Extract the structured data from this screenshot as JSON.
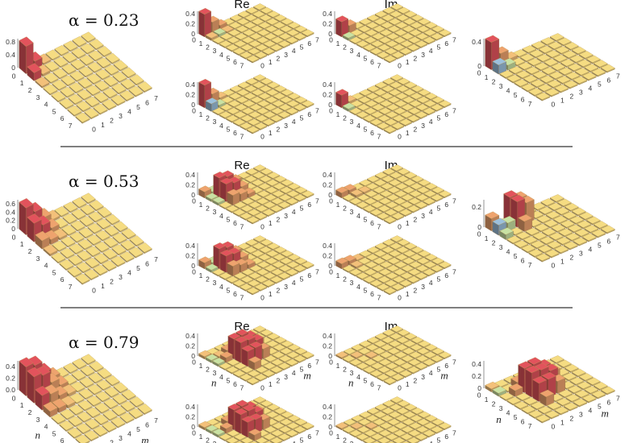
{
  "colors": {
    "tile": "#f5dc82",
    "red": "#e2535c",
    "orange": "#eea36e",
    "light_orange": "#f3c07a",
    "green": "#c9e2a3",
    "blue": "#9cc0dc",
    "divider": "#555555"
  },
  "column_titles": {
    "re": "Re",
    "im": "Im"
  },
  "axis_names": {
    "n": "n",
    "m": "m"
  },
  "index_labels": [
    "0",
    "1",
    "2",
    "3",
    "4",
    "5",
    "6",
    "7"
  ],
  "chart_data": [
    {
      "type": "bar3d",
      "alpha_label": "α = 0.23",
      "show_nm": false,
      "panels": {
        "populations": {
          "zmax": 0.9,
          "zticks": [
            "0",
            "0.4",
            "0.8"
          ],
          "ztick_values": [
            0,
            0.4,
            0.8
          ],
          "bars": [
            [
              0,
              0,
              0.85
            ],
            [
              0,
              1,
              0.25
            ],
            [
              1,
              0,
              0.25
            ],
            [
              1,
              1,
              0.07
            ],
            [
              0,
              2,
              0.05
            ],
            [
              2,
              0,
              0.05
            ]
          ]
        },
        "re_top": {
          "zmax": 0.45,
          "zticks": [
            "0",
            "0.2",
            "0.4"
          ],
          "ztick_values": [
            0,
            0.2,
            0.4
          ],
          "bars": [
            [
              0,
              0,
              0.45
            ],
            [
              0,
              1,
              0.22
            ],
            [
              1,
              0,
              0.05
            ],
            [
              1,
              1,
              -0.05
            ],
            [
              0,
              2,
              0.08
            ],
            [
              1,
              2,
              0.03
            ]
          ]
        },
        "re_bottom": {
          "zmax": 0.45,
          "zticks": [
            "0",
            "0.2",
            "0.4"
          ],
          "ztick_values": [
            0,
            0.2,
            0.4
          ],
          "bars": [
            [
              0,
              0,
              0.45
            ],
            [
              0,
              1,
              0.2
            ],
            [
              1,
              0,
              -0.15
            ],
            [
              1,
              1,
              -0.05
            ],
            [
              0,
              2,
              0.05
            ]
          ]
        },
        "im_top": {
          "zmax": 0.45,
          "zticks": [
            "0",
            "0.2",
            "0.4"
          ],
          "ztick_values": [
            0,
            0.2,
            0.4
          ],
          "bars": [
            [
              0,
              0,
              0.3
            ],
            [
              0,
              1,
              0.15
            ],
            [
              1,
              0,
              -0.05
            ]
          ]
        },
        "im_bottom": {
          "zmax": 0.45,
          "zticks": [
            "0",
            "0.2",
            "0.4"
          ],
          "ztick_values": [
            0,
            0.2,
            0.4
          ],
          "bars": [
            [
              0,
              0,
              0.25
            ],
            [
              0,
              1,
              0.05
            ],
            [
              1,
              0,
              -0.05
            ]
          ]
        },
        "reconstructed": {
          "zmax": 0.45,
          "zticks": [
            "0",
            "0.4"
          ],
          "ztick_values": [
            0,
            0.4
          ],
          "bars": [
            [
              0,
              0,
              0.45
            ],
            [
              0,
              1,
              0.2
            ],
            [
              1,
              0,
              -0.15
            ],
            [
              1,
              1,
              -0.08
            ],
            [
              0,
              2,
              0.05
            ]
          ]
        }
      }
    },
    {
      "type": "bar3d",
      "alpha_label": "α = 0.53",
      "show_nm": false,
      "panels": {
        "populations": {
          "zmax": 0.7,
          "zticks": [
            "0",
            "0.2",
            "0.4",
            "0.6"
          ],
          "ztick_values": [
            0,
            0.2,
            0.4,
            0.6
          ],
          "bars": [
            [
              0,
              0,
              0.65
            ],
            [
              0,
              1,
              0.45
            ],
            [
              1,
              0,
              0.45
            ],
            [
              1,
              1,
              0.3
            ],
            [
              0,
              2,
              0.2
            ],
            [
              2,
              0,
              0.2
            ],
            [
              1,
              2,
              0.12
            ],
            [
              2,
              1,
              0.12
            ],
            [
              2,
              2,
              0.05
            ],
            [
              0,
              3,
              0.05
            ],
            [
              3,
              0,
              0.05
            ]
          ]
        },
        "re_top": {
          "zmax": 0.45,
          "zticks": [
            "0",
            "0.2",
            "0.4"
          ],
          "ztick_values": [
            0,
            0.2,
            0.4
          ],
          "bars": [
            [
              0,
              0,
              0.12
            ],
            [
              1,
              1,
              0.4
            ],
            [
              1,
              2,
              0.35
            ],
            [
              2,
              1,
              0.35
            ],
            [
              2,
              2,
              0.3
            ],
            [
              1,
              3,
              0.2
            ],
            [
              3,
              1,
              0.2
            ],
            [
              2,
              3,
              0.15
            ],
            [
              3,
              2,
              0.15
            ],
            [
              3,
              3,
              0.08
            ],
            [
              0,
              1,
              -0.05
            ],
            [
              0,
              2,
              -0.05
            ],
            [
              1,
              0,
              -0.05
            ],
            [
              2,
              0,
              -0.05
            ]
          ]
        },
        "re_bottom": {
          "zmax": 0.45,
          "zticks": [
            "0",
            "0.2",
            "0.4"
          ],
          "ztick_values": [
            0,
            0.2,
            0.4
          ],
          "bars": [
            [
              0,
              0,
              0.12
            ],
            [
              1,
              1,
              0.4
            ],
            [
              1,
              2,
              0.35
            ],
            [
              2,
              1,
              0.33
            ],
            [
              2,
              2,
              0.3
            ],
            [
              1,
              3,
              0.2
            ],
            [
              3,
              1,
              0.2
            ],
            [
              2,
              3,
              0.15
            ],
            [
              3,
              2,
              0.15
            ],
            [
              3,
              3,
              0.08
            ],
            [
              0,
              1,
              -0.05
            ],
            [
              1,
              0,
              -0.05
            ]
          ]
        },
        "im_top": {
          "zmax": 0.45,
          "zticks": [
            "0",
            "0.2",
            "0.4"
          ],
          "ztick_values": [
            0,
            0.2,
            0.4
          ],
          "bars": [
            [
              0,
              0,
              0.1
            ],
            [
              0,
              1,
              0.08
            ],
            [
              1,
              1,
              0.05
            ],
            [
              1,
              2,
              0.04
            ]
          ]
        },
        "im_bottom": {
          "zmax": 0.45,
          "zticks": [
            "0",
            "0.2",
            "0.4"
          ],
          "ztick_values": [
            0,
            0.2,
            0.4
          ],
          "bars": [
            [
              0,
              0,
              0.1
            ],
            [
              0,
              1,
              0.08
            ],
            [
              1,
              1,
              0.04
            ],
            [
              0,
              2,
              0.03
            ]
          ]
        },
        "reconstructed": {
          "zmax": 0.27,
          "zticks": [
            "0",
            "0.2"
          ],
          "ztick_values": [
            0,
            0.2
          ],
          "bars": [
            [
              0,
              0,
              0.12
            ],
            [
              0,
              2,
              0.25
            ],
            [
              1,
              2,
              0.25
            ],
            [
              0,
              3,
              0.2
            ],
            [
              1,
              3,
              0.2
            ],
            [
              2,
              2,
              0.1
            ],
            [
              1,
              0,
              -0.1
            ],
            [
              1,
              1,
              -0.08
            ],
            [
              2,
              0,
              -0.05
            ]
          ]
        }
      }
    },
    {
      "type": "bar3d",
      "alpha_label": "α = 0.79",
      "show_nm": true,
      "panels": {
        "populations": {
          "zmax": 0.5,
          "zticks": [
            "0.0",
            "0.2",
            "0.4"
          ],
          "ztick_values": [
            0,
            0.2,
            0.4
          ],
          "bars": [
            [
              0,
              0,
              0.5
            ],
            [
              0,
              1,
              0.45
            ],
            [
              1,
              0,
              0.45
            ],
            [
              1,
              1,
              0.4
            ],
            [
              0,
              2,
              0.25
            ],
            [
              2,
              0,
              0.25
            ],
            [
              1,
              2,
              0.2
            ],
            [
              2,
              1,
              0.2
            ],
            [
              2,
              2,
              0.1
            ],
            [
              0,
              3,
              0.1
            ],
            [
              3,
              0,
              0.1
            ],
            [
              1,
              3,
              0.08
            ],
            [
              3,
              1,
              0.08
            ],
            [
              2,
              3,
              0.05
            ],
            [
              3,
              2,
              0.05
            ]
          ]
        },
        "re_top": {
          "zmax": 0.45,
          "zticks": [
            "0",
            "0.2",
            "0.4"
          ],
          "ztick_values": [
            0,
            0.2,
            0.4
          ],
          "bars": [
            [
              0,
              0,
              0.05
            ],
            [
              2,
              2,
              0.4
            ],
            [
              2,
              3,
              0.4
            ],
            [
              3,
              2,
              0.4
            ],
            [
              3,
              3,
              0.38
            ],
            [
              2,
              4,
              0.3
            ],
            [
              4,
              2,
              0.3
            ],
            [
              3,
              4,
              0.3
            ],
            [
              4,
              3,
              0.3
            ],
            [
              4,
              4,
              0.2
            ],
            [
              1,
              2,
              0.1
            ],
            [
              2,
              1,
              0.1
            ],
            [
              1,
              1,
              0.05
            ],
            [
              2,
              5,
              0.15
            ],
            [
              5,
              2,
              0.15
            ],
            [
              1,
              0,
              -0.05
            ],
            [
              2,
              0,
              -0.05
            ]
          ]
        },
        "re_bottom": {
          "zmax": 0.45,
          "zticks": [
            "0",
            "0.2",
            "0.4"
          ],
          "ztick_values": [
            0,
            0.2,
            0.4
          ],
          "bars": [
            [
              0,
              0,
              0.05
            ],
            [
              2,
              2,
              0.4
            ],
            [
              2,
              3,
              0.4
            ],
            [
              3,
              2,
              0.38
            ],
            [
              3,
              3,
              0.38
            ],
            [
              2,
              4,
              0.3
            ],
            [
              4,
              2,
              0.3
            ],
            [
              3,
              4,
              0.28
            ],
            [
              4,
              3,
              0.28
            ],
            [
              4,
              4,
              0.2
            ],
            [
              1,
              2,
              0.1
            ],
            [
              2,
              1,
              0.1
            ],
            [
              2,
              5,
              0.15
            ],
            [
              5,
              2,
              0.12
            ],
            [
              1,
              0,
              -0.05
            ],
            [
              2,
              0,
              -0.05
            ]
          ]
        },
        "im_top": {
          "zmax": 0.45,
          "zticks": [
            "0",
            "0.2",
            "0.4"
          ],
          "ztick_values": [
            0,
            0.2,
            0.4
          ],
          "bars": [
            [
              0,
              0,
              0.03
            ],
            [
              1,
              1,
              0.03
            ],
            [
              2,
              2,
              0.03
            ]
          ]
        },
        "im_bottom": {
          "zmax": 0.45,
          "zticks": [
            "0",
            "0.2",
            "0.4"
          ],
          "ztick_values": [
            0,
            0.2,
            0.4
          ],
          "bars": [
            [
              0,
              0,
              0.03
            ],
            [
              1,
              1,
              0.02
            ],
            [
              2,
              2,
              0.03
            ]
          ]
        },
        "reconstructed": {
          "zmax": 0.45,
          "zticks": [
            "0",
            "0.2",
            "0.4"
          ],
          "ztick_values": [
            0,
            0.2,
            0.4
          ],
          "bars": [
            [
              0,
              0,
              0.05
            ],
            [
              2,
              2,
              0.4
            ],
            [
              2,
              3,
              0.4
            ],
            [
              3,
              2,
              0.4
            ],
            [
              3,
              3,
              0.38
            ],
            [
              2,
              4,
              0.3
            ],
            [
              4,
              2,
              0.3
            ],
            [
              3,
              4,
              0.3
            ],
            [
              4,
              3,
              0.3
            ],
            [
              4,
              4,
              0.2
            ],
            [
              1,
              2,
              0.1
            ],
            [
              2,
              1,
              0.1
            ],
            [
              2,
              5,
              0.15
            ],
            [
              5,
              2,
              0.15
            ],
            [
              1,
              0,
              -0.05
            ]
          ]
        }
      }
    }
  ]
}
